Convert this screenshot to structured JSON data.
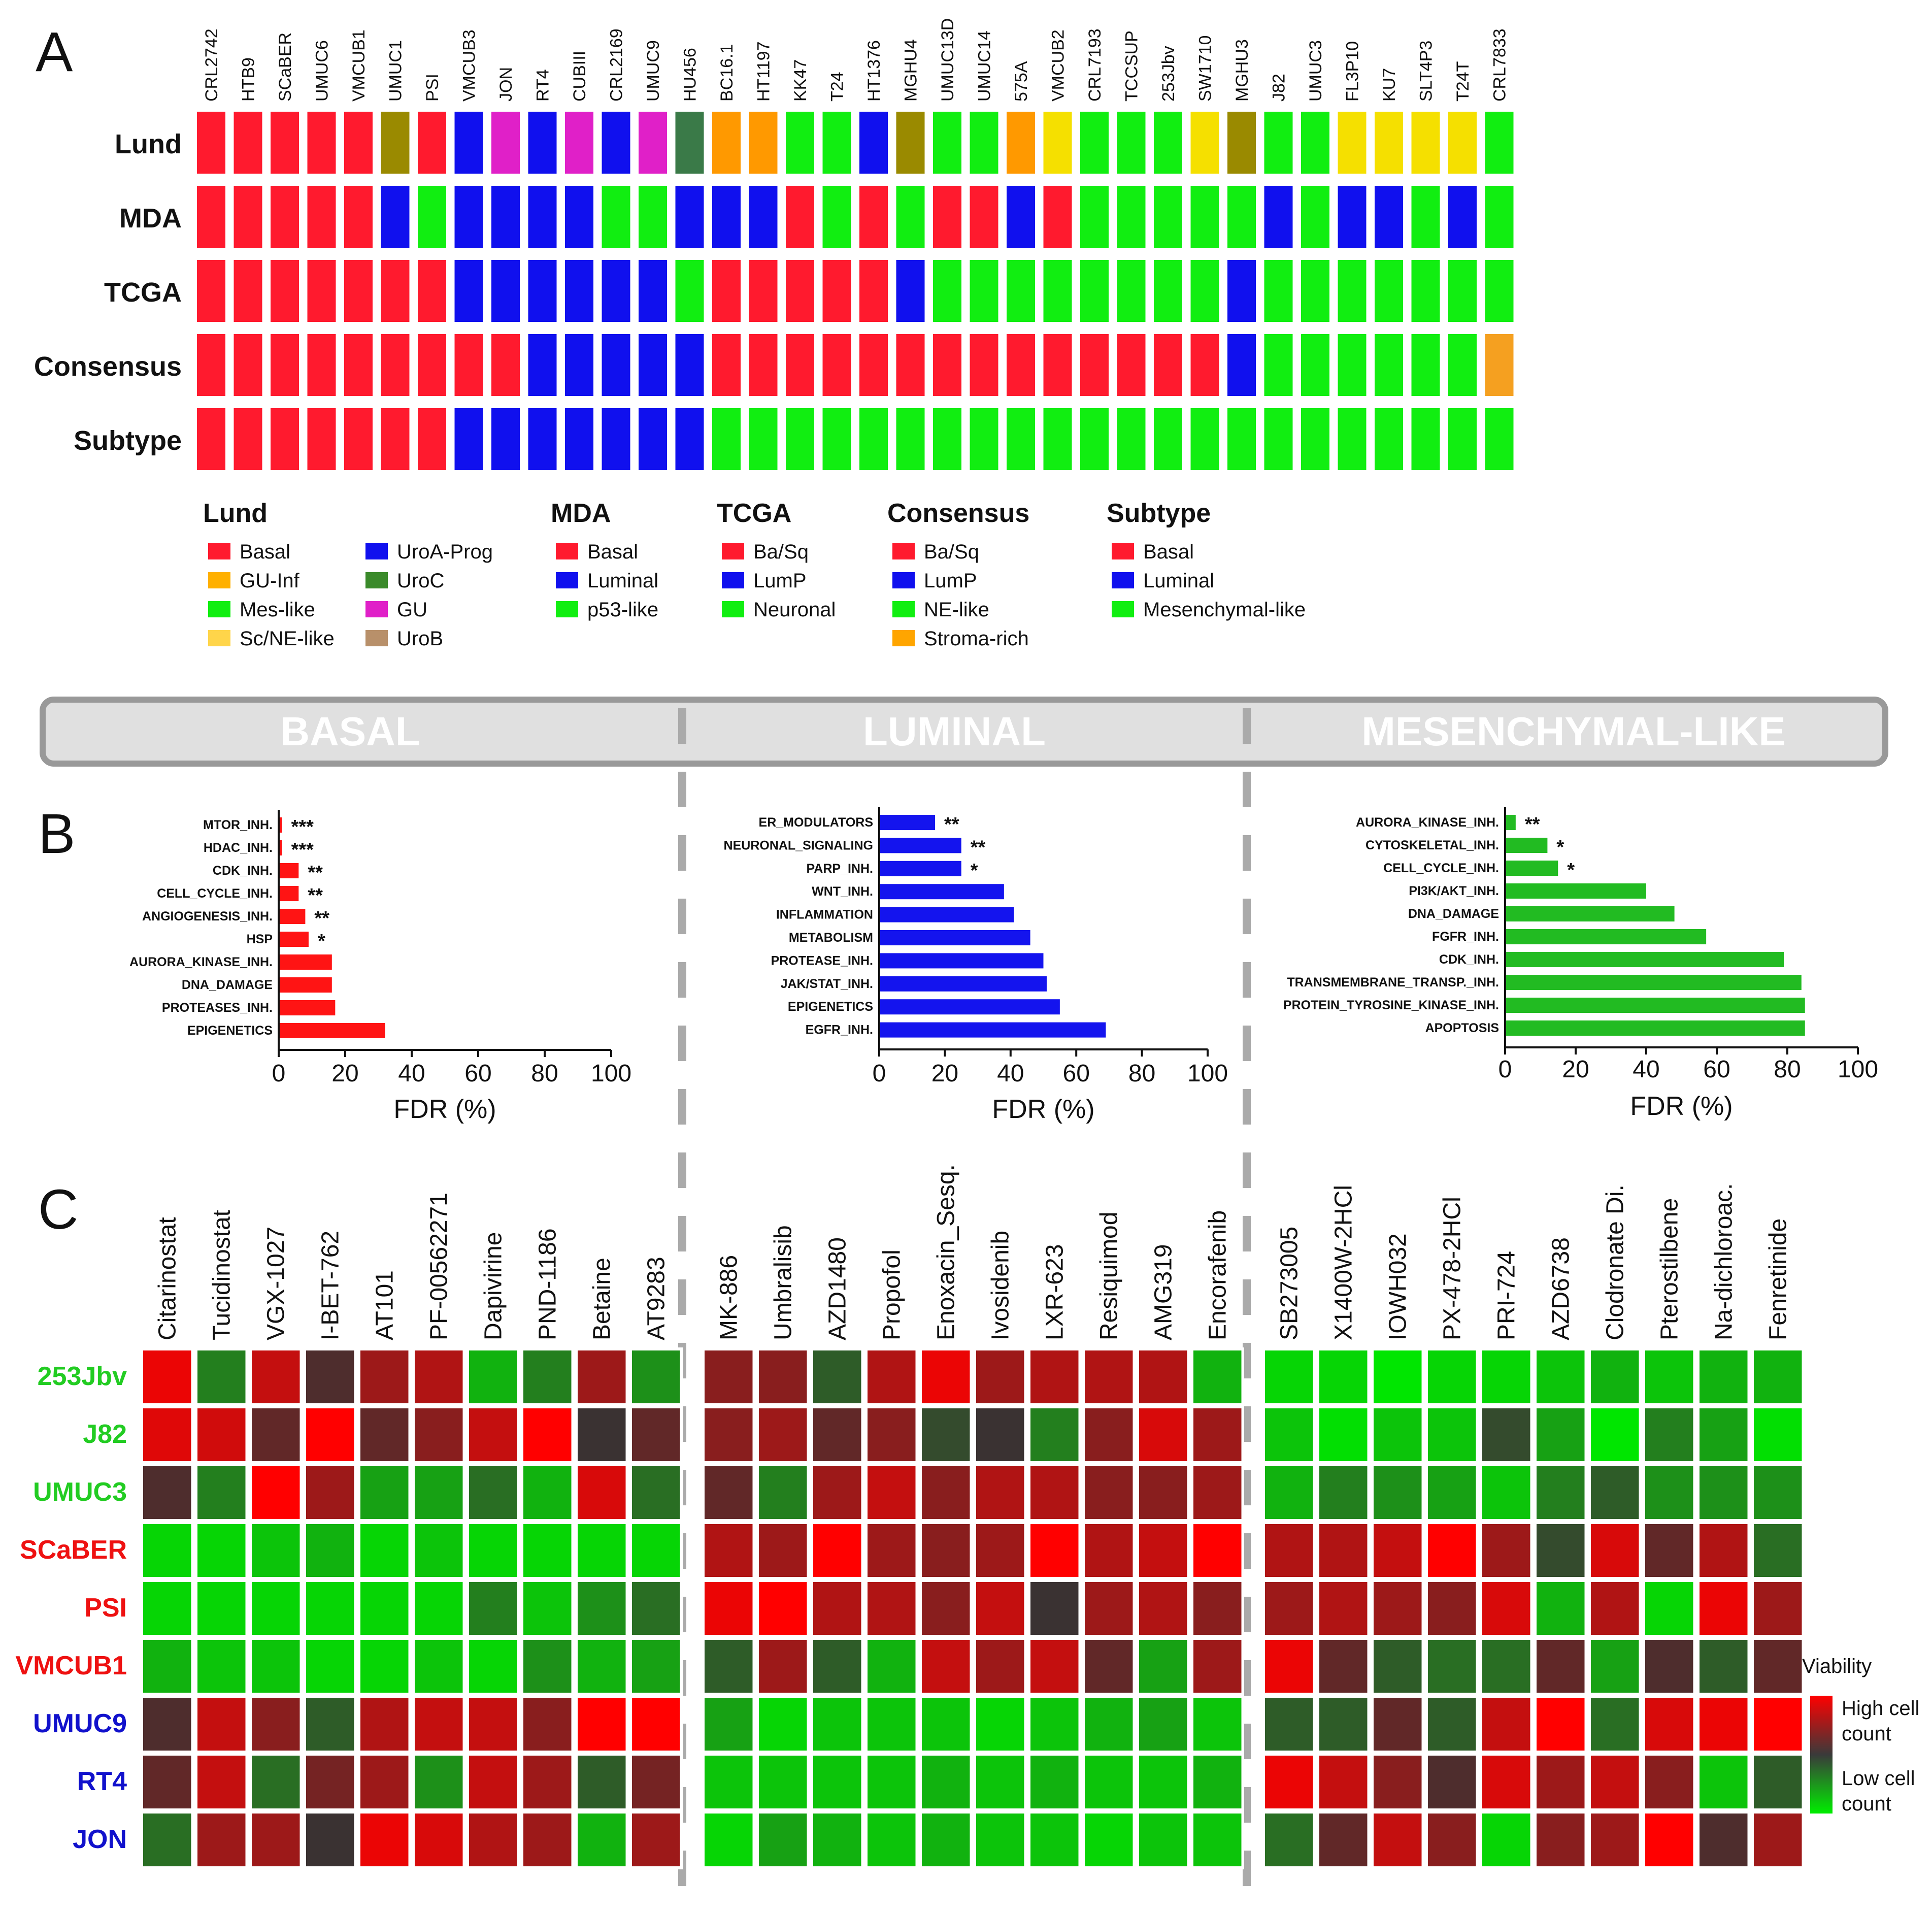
{
  "colors": {
    "basal": "#ff1a2e",
    "luminal": "#1010ee",
    "mes": "#11ee11",
    "lund_guinf": "#ff9900",
    "lund_scne": "#f5e000",
    "lund_urob": "#9a8a00",
    "lund_uroc": "#3a7a48",
    "lund_gu": "#e020c8",
    "legend_guinf": "#ffb000",
    "legend_scne": "#ffd54a",
    "legend_uroc": "#3a8a2a",
    "legend_urob": "#b8906a",
    "legend_stroma": "#ffa500",
    "stroma_cell": "#f5a020",
    "bar_basal": "#ff1414",
    "bar_luminal": "#1414ee",
    "bar_mes": "#22bb22",
    "panel_bg": "#e0e0e0",
    "panel_border": "#999999",
    "divider": "#aaaaaa"
  },
  "panel_letters": {
    "a": "A",
    "b": "B",
    "c": "C"
  },
  "panel_a": {
    "cell_lines": [
      "CRL2742",
      "HTB9",
      "SCaBER",
      "UMUC6",
      "VMCUB1",
      "UMUC1",
      "PSI",
      "VMCUB3",
      "JON",
      "RT4",
      "CUBIII",
      "CRL2169",
      "UMUC9",
      "HU456",
      "BC16.1",
      "HT1197",
      "KK47",
      "T24",
      "HT1376",
      "MGHU4",
      "UMUC13D",
      "UMUC14",
      "575A",
      "VMCUB2",
      "CRL7193",
      "TCCSUP",
      "253Jbv",
      "SW1710",
      "MGHU3",
      "J82",
      "UMUC3",
      "FL3P10",
      "KU7",
      "SLT4P3",
      "T24T",
      "CRL7833"
    ],
    "rows": [
      {
        "label": "Lund",
        "codes": [
          "B",
          "B",
          "B",
          "B",
          "B",
          "UB",
          "B",
          "L",
          "GU",
          "L",
          "GU",
          "L",
          "GU",
          "UC",
          "GI",
          "GI",
          "M",
          "M",
          "L",
          "UB",
          "M",
          "M",
          "GI",
          "SN",
          "M",
          "M",
          "M",
          "SN",
          "UB",
          "M",
          "M",
          "SN",
          "SN",
          "SN",
          "SN",
          "M"
        ]
      },
      {
        "label": "MDA",
        "codes": [
          "B",
          "B",
          "B",
          "B",
          "B",
          "L",
          "M",
          "L",
          "L",
          "L",
          "L",
          "M",
          "M",
          "L",
          "L",
          "L",
          "B",
          "M",
          "B",
          "M",
          "B",
          "B",
          "L",
          "B",
          "M",
          "M",
          "M",
          "M",
          "M",
          "L",
          "M",
          "L",
          "L",
          "M",
          "L",
          "M"
        ]
      },
      {
        "label": "TCGA",
        "codes": [
          "B",
          "B",
          "B",
          "B",
          "B",
          "B",
          "B",
          "L",
          "L",
          "L",
          "L",
          "L",
          "L",
          "M",
          "B",
          "B",
          "B",
          "B",
          "B",
          "L",
          "M",
          "M",
          "M",
          "M",
          "M",
          "M",
          "M",
          "M",
          "L",
          "M",
          "M",
          "M",
          "M",
          "M",
          "M",
          "M"
        ]
      },
      {
        "label": "Consensus",
        "codes": [
          "B",
          "B",
          "B",
          "B",
          "B",
          "B",
          "B",
          "B",
          "B",
          "L",
          "L",
          "L",
          "L",
          "L",
          "B",
          "B",
          "B",
          "B",
          "B",
          "B",
          "B",
          "B",
          "B",
          "B",
          "B",
          "B",
          "B",
          "B",
          "L",
          "M",
          "M",
          "M",
          "M",
          "M",
          "M",
          "S"
        ]
      },
      {
        "label": "Subtype",
        "codes": [
          "B",
          "B",
          "B",
          "B",
          "B",
          "B",
          "B",
          "L",
          "L",
          "L",
          "L",
          "L",
          "L",
          "L",
          "M",
          "M",
          "M",
          "M",
          "M",
          "M",
          "M",
          "M",
          "M",
          "M",
          "M",
          "M",
          "M",
          "M",
          "M",
          "M",
          "M",
          "M",
          "M",
          "M",
          "M",
          "M"
        ]
      }
    ],
    "legend": [
      {
        "title": "Lund",
        "items": [
          {
            "label": "Basal",
            "color": "basal"
          },
          {
            "label": "GU-Inf",
            "color": "legend_guinf"
          },
          {
            "label": "Mes-like",
            "color": "mes"
          },
          {
            "label": "Sc/NE-like",
            "color": "legend_scne"
          },
          {
            "label": "UroA-Prog",
            "color": "luminal"
          },
          {
            "label": "UroC",
            "color": "legend_uroc"
          },
          {
            "label": "GU",
            "color": "lund_gu"
          },
          {
            "label": "UroB",
            "color": "legend_urob"
          }
        ]
      },
      {
        "title": "MDA",
        "items": [
          {
            "label": "Basal",
            "color": "basal"
          },
          {
            "label": "Luminal",
            "color": "luminal"
          },
          {
            "label": "p53-like",
            "color": "mes"
          }
        ]
      },
      {
        "title": "TCGA",
        "items": [
          {
            "label": "Ba/Sq",
            "color": "basal"
          },
          {
            "label": "LumP",
            "color": "luminal"
          },
          {
            "label": "Neuronal",
            "color": "mes"
          }
        ]
      },
      {
        "title": "Consensus",
        "items": [
          {
            "label": "Ba/Sq",
            "color": "basal"
          },
          {
            "label": "LumP",
            "color": "luminal"
          },
          {
            "label": "NE-like",
            "color": "mes"
          },
          {
            "label": "Stroma-rich",
            "color": "legend_stroma"
          }
        ]
      },
      {
        "title": "Subtype",
        "items": [
          {
            "label": "Basal",
            "color": "basal"
          },
          {
            "label": "Luminal",
            "color": "luminal"
          },
          {
            "label": "Mesenchymal-like",
            "color": "mes"
          }
        ]
      }
    ]
  },
  "banner": {
    "basal": "BASAL",
    "luminal": "LUMINAL",
    "mes": "MESENCHYMAL-LIKE"
  },
  "chart_data": [
    {
      "type": "bar",
      "orientation": "horizontal",
      "title": "BASAL",
      "xlabel": "FDR (%)",
      "xlim": [
        0,
        100
      ],
      "xticks": [
        0,
        20,
        40,
        60,
        80,
        100
      ],
      "categories": [
        "MTOR_INH.",
        "HDAC_INH.",
        "CDK_INH.",
        "CELL_CYCLE_INH.",
        "ANGIOGENESIS_INH.",
        "HSP",
        "AURORA_KINASE_INH.",
        "DNA_DAMAGE",
        "PROTEASES_INH.",
        "EPIGENETICS"
      ],
      "values": [
        1,
        1,
        6,
        6,
        8,
        9,
        16,
        16,
        17,
        32
      ],
      "annotations": [
        "***",
        "***",
        "**",
        "**",
        "**",
        "*",
        "",
        "",
        "",
        ""
      ],
      "color": "bar_basal"
    },
    {
      "type": "bar",
      "orientation": "horizontal",
      "title": "LUMINAL",
      "xlabel": "FDR (%)",
      "xlim": [
        0,
        100
      ],
      "xticks": [
        0,
        20,
        40,
        60,
        80,
        100
      ],
      "categories": [
        "ER_MODULATORS",
        "NEURONAL_SIGNALING",
        "PARP_INH.",
        "WNT_INH.",
        "INFLAMMATION",
        "METABOLISM",
        "PROTEASE_INH.",
        "JAK/STAT_INH.",
        "EPIGENETICS",
        "EGFR_INH."
      ],
      "values": [
        17,
        25,
        25,
        38,
        41,
        46,
        50,
        51,
        55,
        69
      ],
      "annotations": [
        "**",
        "**",
        "*",
        "",
        "",
        "",
        "",
        "",
        "",
        ""
      ],
      "color": "bar_luminal"
    },
    {
      "type": "bar",
      "orientation": "horizontal",
      "title": "MESENCHYMAL-LIKE",
      "xlabel": "FDR (%)",
      "xlim": [
        0,
        100
      ],
      "xticks": [
        0,
        20,
        40,
        60,
        80,
        100
      ],
      "categories": [
        "AURORA_KINASE_INH.",
        "CYTOSKELETAL_INH.",
        "CELL_CYCLE_INH.",
        "PI3K/AKT_INH.",
        "DNA_DAMAGE",
        "FGFR_INH.",
        "CDK_INH.",
        "TRANSMEMBRANE_TRANSP._INH.",
        "PROTEIN_TYROSINE_KINASE_INH.",
        "APOPTOSIS"
      ],
      "values": [
        3,
        12,
        15,
        40,
        48,
        57,
        79,
        84,
        85,
        85
      ],
      "annotations": [
        "**",
        "*",
        "*",
        "",
        "",
        "",
        "",
        "",
        "",
        ""
      ],
      "color": "bar_mes"
    },
    {
      "type": "heatmap",
      "title": "Viability",
      "scale": "v: 0 = low cell count (green) to 1 = high cell count (red)",
      "rows": [
        {
          "label": "253Jbv",
          "group": "mes"
        },
        {
          "label": "J82",
          "group": "mes"
        },
        {
          "label": "UMUC3",
          "group": "mes"
        },
        {
          "label": "SCaBER",
          "group": "basal"
        },
        {
          "label": "PSI",
          "group": "basal"
        },
        {
          "label": "VMCUB1",
          "group": "basal"
        },
        {
          "label": "UMUC9",
          "group": "luminal"
        },
        {
          "label": "RT4",
          "group": "luminal"
        },
        {
          "label": "JON",
          "group": "luminal"
        }
      ],
      "blocks": [
        {
          "drugs": [
            "Citarinostat",
            "Tucidinostat",
            "VGX-1027",
            "I-BET-762",
            "AT101",
            "PF-00562271",
            "Dapivirine",
            "PND-1186",
            "Betaine",
            "AT9283"
          ],
          "values": [
            [
              0.95,
              0.3,
              0.85,
              0.55,
              0.75,
              0.8,
              0.15,
              0.3,
              0.75,
              0.25
            ],
            [
              0.92,
              0.88,
              0.6,
              1.0,
              0.6,
              0.7,
              0.85,
              1.0,
              0.5,
              0.6
            ],
            [
              0.55,
              0.3,
              1.0,
              0.75,
              0.2,
              0.2,
              0.35,
              0.15,
              0.9,
              0.35
            ],
            [
              0.05,
              0.05,
              0.1,
              0.15,
              0.05,
              0.1,
              0.05,
              0.05,
              0.05,
              0.05
            ],
            [
              0.05,
              0.05,
              0.05,
              0.05,
              0.05,
              0.05,
              0.3,
              0.1,
              0.25,
              0.35
            ],
            [
              0.15,
              0.1,
              0.1,
              0.05,
              0.05,
              0.1,
              0.05,
              0.25,
              0.15,
              0.2
            ],
            [
              0.55,
              0.85,
              0.7,
              0.4,
              0.8,
              0.85,
              0.85,
              0.7,
              1.0,
              1.0
            ],
            [
              0.6,
              0.85,
              0.35,
              0.65,
              0.75,
              0.25,
              0.85,
              0.75,
              0.4,
              0.65
            ],
            [
              0.35,
              0.75,
              0.75,
              0.5,
              0.95,
              0.9,
              0.8,
              0.75,
              0.15,
              0.75
            ]
          ]
        },
        {
          "drugs": [
            "MK-886",
            "Umbralisib",
            "AZD1480",
            "Propofol",
            "Enoxacin_Sesq.",
            "Ivosidenib",
            "LXR-623",
            "Resiquimod",
            "AMG319",
            "Encorafenib"
          ],
          "values": [
            [
              0.7,
              0.7,
              0.4,
              0.8,
              0.95,
              0.75,
              0.8,
              0.8,
              0.8,
              0.15
            ],
            [
              0.7,
              0.75,
              0.6,
              0.7,
              0.45,
              0.5,
              0.3,
              0.7,
              0.9,
              0.75
            ],
            [
              0.6,
              0.3,
              0.75,
              0.85,
              0.7,
              0.8,
              0.8,
              0.7,
              0.7,
              0.75
            ],
            [
              0.8,
              0.75,
              1.0,
              0.75,
              0.7,
              0.75,
              1.0,
              0.8,
              0.85,
              1.0
            ],
            [
              0.95,
              1.0,
              0.8,
              0.8,
              0.7,
              0.85,
              0.5,
              0.75,
              0.8,
              0.7
            ],
            [
              0.4,
              0.75,
              0.4,
              0.15,
              0.85,
              0.75,
              0.85,
              0.6,
              0.2,
              0.75
            ],
            [
              0.2,
              0.05,
              0.1,
              0.1,
              0.1,
              0.05,
              0.1,
              0.15,
              0.2,
              0.1
            ],
            [
              0.1,
              0.1,
              0.1,
              0.1,
              0.15,
              0.1,
              0.15,
              0.1,
              0.1,
              0.15
            ],
            [
              0.05,
              0.2,
              0.15,
              0.1,
              0.15,
              0.1,
              0.1,
              0.05,
              0.1,
              0.1
            ]
          ]
        },
        {
          "drugs": [
            "SB273005",
            "X1400W-2HCl",
            "IOWH032",
            "PX-478-2HCl",
            "PRI-724",
            "AZD6738",
            "Clodronate Di.",
            "Pterostilbene",
            "Na-dichloroac.",
            "Fenretinide"
          ],
          "values": [
            [
              0.05,
              0.05,
              0.0,
              0.05,
              0.05,
              0.1,
              0.15,
              0.1,
              0.15,
              0.15
            ],
            [
              0.1,
              0.02,
              0.1,
              0.1,
              0.45,
              0.2,
              0.0,
              0.3,
              0.2,
              0.02
            ],
            [
              0.15,
              0.3,
              0.25,
              0.2,
              0.1,
              0.3,
              0.4,
              0.25,
              0.25,
              0.25
            ],
            [
              0.8,
              0.8,
              0.85,
              1.0,
              0.75,
              0.45,
              0.9,
              0.6,
              0.8,
              0.35
            ],
            [
              0.75,
              0.8,
              0.75,
              0.7,
              0.9,
              0.15,
              0.8,
              0.05,
              0.95,
              0.75
            ],
            [
              0.95,
              0.6,
              0.4,
              0.35,
              0.35,
              0.6,
              0.2,
              0.55,
              0.4,
              0.6
            ],
            [
              0.4,
              0.4,
              0.6,
              0.4,
              0.85,
              1.0,
              0.35,
              0.9,
              0.95,
              1.0
            ],
            [
              0.95,
              0.85,
              0.7,
              0.55,
              0.9,
              0.75,
              0.85,
              0.7,
              0.1,
              0.4
            ],
            [
              0.35,
              0.6,
              0.85,
              0.7,
              0.05,
              0.7,
              0.75,
              1.0,
              0.55,
              0.75
            ]
          ]
        }
      ],
      "colorbar": {
        "title": "Viability",
        "high": "High cell count",
        "low": "Low cell count"
      }
    }
  ]
}
